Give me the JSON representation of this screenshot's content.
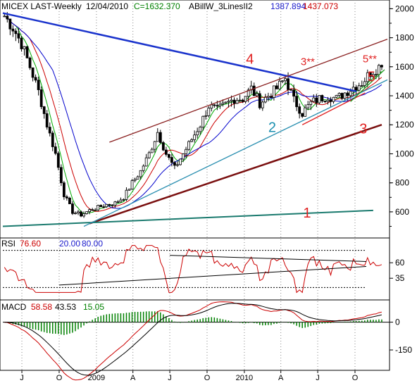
{
  "chart_data": [
    {
      "type": "candlestick",
      "panel": "price",
      "header": {
        "symbol": "MICEX LAST-Weekly",
        "date": "12/04/2010",
        "close_text": "C=1632.370",
        "indicator_name": "ABillW_3LinesII2",
        "value_1": "1387.894",
        "value_2": "1437.073"
      },
      "ylim": [
        420,
        2060
      ],
      "y_ticks": [
        "2000",
        "1800",
        "1600",
        "1400",
        "1200",
        "1000",
        "800",
        "600"
      ],
      "x_ticks": [
        "J",
        "O",
        "2009",
        "A",
        "J",
        "O",
        "2010",
        "A",
        "J",
        "O"
      ],
      "x_tick_dates": [
        "2008-07-01",
        "2008-10-01",
        "2009-01-01",
        "2009-04-01",
        "2009-07-01",
        "2009-10-01",
        "2010-01-01",
        "2010-04-01",
        "2010-07-01",
        "2010-10-01"
      ],
      "x_range": [
        "2008-05-15",
        "2010-12-20"
      ],
      "close_series": [
        [
          "2008-05-19",
          1950
        ],
        [
          "2008-06-09",
          1870
        ],
        [
          "2008-06-30",
          1760
        ],
        [
          "2008-07-21",
          1600
        ],
        [
          "2008-08-11",
          1430
        ],
        [
          "2008-09-01",
          1200
        ],
        [
          "2008-09-22",
          1000
        ],
        [
          "2008-10-13",
          720
        ],
        [
          "2008-11-03",
          600
        ],
        [
          "2008-11-24",
          580
        ],
        [
          "2008-12-15",
          610
        ],
        [
          "2009-01-05",
          630
        ],
        [
          "2009-01-26",
          650
        ],
        [
          "2009-02-16",
          660
        ],
        [
          "2009-03-09",
          700
        ],
        [
          "2009-03-30",
          800
        ],
        [
          "2009-04-20",
          880
        ],
        [
          "2009-05-11",
          1000
        ],
        [
          "2009-06-01",
          1150
        ],
        [
          "2009-06-22",
          1000
        ],
        [
          "2009-07-13",
          900
        ],
        [
          "2009-08-03",
          1000
        ],
        [
          "2009-08-24",
          1100
        ],
        [
          "2009-09-14",
          1200
        ],
        [
          "2009-10-05",
          1330
        ],
        [
          "2009-10-26",
          1300
        ],
        [
          "2009-11-16",
          1340
        ],
        [
          "2009-12-07",
          1380
        ],
        [
          "2009-12-28",
          1380
        ],
        [
          "2010-01-18",
          1450
        ],
        [
          "2010-02-08",
          1350
        ],
        [
          "2010-03-01",
          1400
        ],
        [
          "2010-03-22",
          1450
        ],
        [
          "2010-04-12",
          1520
        ],
        [
          "2010-05-03",
          1370
        ],
        [
          "2010-05-24",
          1280
        ],
        [
          "2010-06-14",
          1350
        ],
        [
          "2010-07-05",
          1380
        ],
        [
          "2010-07-26",
          1400
        ],
        [
          "2010-08-16",
          1380
        ],
        [
          "2010-09-06",
          1420
        ],
        [
          "2010-09-27",
          1460
        ],
        [
          "2010-10-18",
          1490
        ],
        [
          "2010-11-08",
          1560
        ],
        [
          "2010-11-29",
          1600
        ],
        [
          "2010-12-06",
          1632
        ]
      ],
      "trendlines": [
        {
          "label": "4",
          "color": "#1a33cc",
          "from": [
            "2008-05-15",
            1970
          ],
          "to": [
            "2010-10-05",
            1430
          ]
        },
        {
          "label": "3",
          "color": "#7a0f0f",
          "from": [
            "2008-12-15",
            520
          ],
          "to": [
            "2010-12-06",
            1200
          ]
        },
        {
          "label": "1",
          "color": "#1a7a6e",
          "from": [
            "2008-05-15",
            500
          ],
          "to": [
            "2010-11-15",
            610
          ]
        },
        {
          "label": "2",
          "color": "#2a8fb0",
          "from": [
            "2008-12-01",
            500
          ],
          "to": [
            "2010-12-20",
            1510
          ]
        },
        {
          "label": "3**",
          "color": "#8a2020",
          "from": [
            "2009-02-02",
            1080
          ],
          "to": [
            "2010-12-20",
            1790
          ]
        },
        {
          "label": "5",
          "color": "#e02020",
          "from": [
            "2010-05-24",
            1200
          ],
          "to": [
            "2010-10-26",
            1420
          ]
        },
        {
          "label": "5**",
          "color": "#1a9a1a",
          "from": [
            "2010-09-20",
            1360
          ],
          "to": [
            "2010-12-13",
            1580
          ]
        }
      ],
      "labels": [
        {
          "text": "4",
          "color": "#e02020",
          "at": [
            "2010-01-05",
            1620
          ]
        },
        {
          "text": "3**",
          "color": "#e02020",
          "at": [
            "2010-05-20",
            1610
          ]
        },
        {
          "text": "5**",
          "color": "#e02020",
          "at": [
            "2010-10-20",
            1630
          ]
        },
        {
          "text": "5",
          "color": "#e02020",
          "at": [
            "2010-11-01",
            1500
          ]
        },
        {
          "text": "2",
          "color": "#1a8fb0",
          "at": [
            "2010-03-01",
            1150
          ]
        },
        {
          "text": "3",
          "color": "#e02020",
          "at": [
            "2010-10-12",
            1140
          ]
        },
        {
          "text": "1",
          "color": "#e02020",
          "at": [
            "2010-05-26",
            560
          ]
        }
      ]
    },
    {
      "type": "line",
      "panel": "rsi",
      "title_label": "RSI",
      "values": [
        "76.60",
        "20.00",
        "80.00"
      ],
      "ylim": [
        0,
        100
      ],
      "y_ticks": [
        "60",
        "35"
      ]
    },
    {
      "type": "bar+line",
      "panel": "macd",
      "title_label": "MACD",
      "values": [
        "58.58",
        "43.53",
        "15.05"
      ],
      "ylim": [
        -260,
        120
      ],
      "y_ticks": [
        "0",
        "-150"
      ]
    }
  ],
  "colors": {
    "price": "#000000",
    "ma_green": "#00aa00",
    "ma_red": "#cc0000",
    "ma_blue": "#0000cc",
    "header_blue": "#1a1acc",
    "header_green": "#008000",
    "header_red": "#cc0000",
    "header_teal": "#1a7a6e"
  }
}
